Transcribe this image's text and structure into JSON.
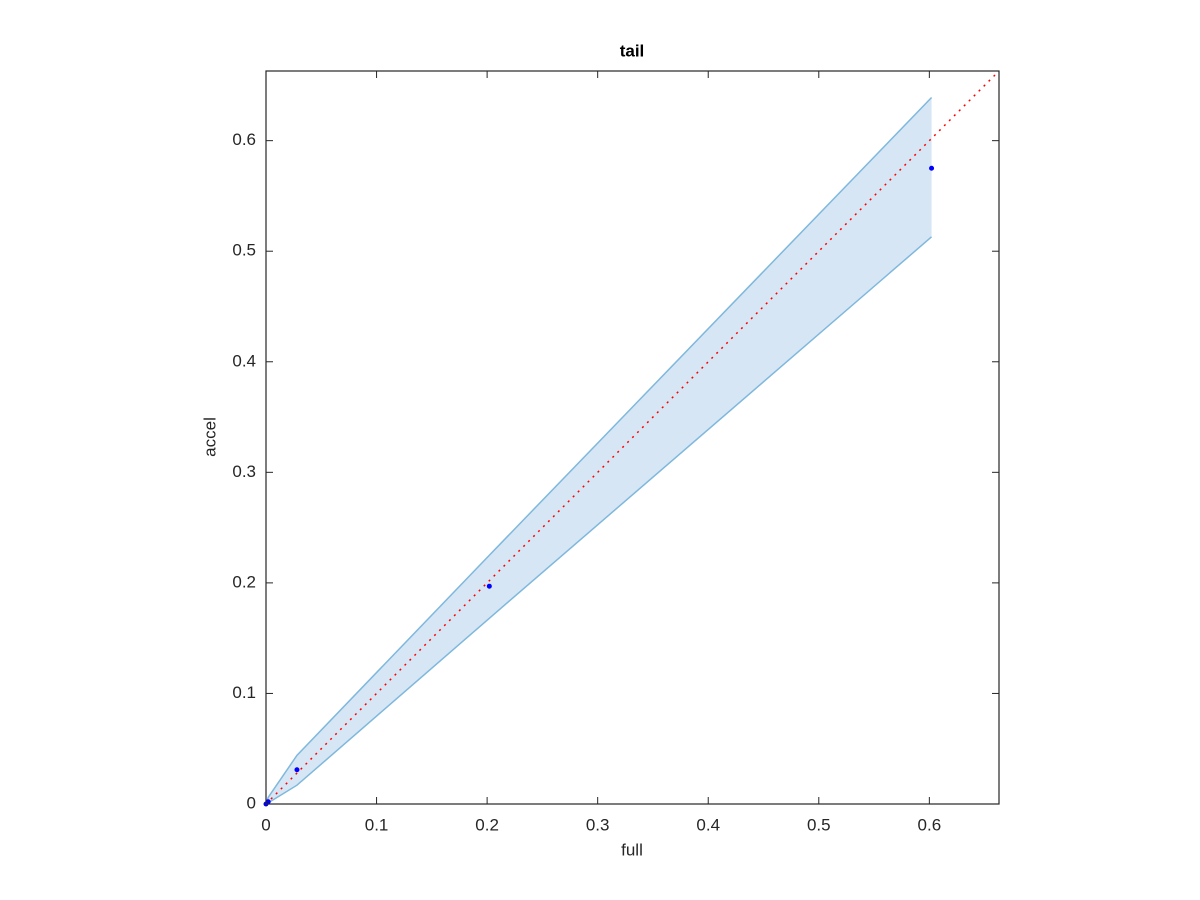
{
  "chart_data": {
    "type": "scatter",
    "title": "tail",
    "x_label": "full",
    "y_label": "accel",
    "xlim": [
      0,
      0.663
    ],
    "ylim": [
      0,
      0.663
    ],
    "xticks": [
      0,
      0.1,
      0.2,
      0.3,
      0.4,
      0.5,
      0.6
    ],
    "yticks": [
      0,
      0.1,
      0.2,
      0.3,
      0.4,
      0.5,
      0.6
    ],
    "grid": false,
    "x": [
      0,
      0.002,
      0.028,
      0.202,
      0.602
    ],
    "values": [
      0,
      0.002,
      0.031,
      0.197,
      0.575
    ],
    "color": "#0000ff",
    "band": {
      "upper": [
        0,
        0.006,
        0.044,
        0.225,
        0.639
      ],
      "lower": [
        0,
        0.001,
        0.017,
        0.168,
        0.513
      ],
      "color": "#7fb8dd",
      "fill": "#d6e6f4"
    },
    "reference": {
      "x": [
        0,
        0.663
      ],
      "y": [
        0,
        0.663
      ],
      "color": "#ff0000"
    }
  }
}
